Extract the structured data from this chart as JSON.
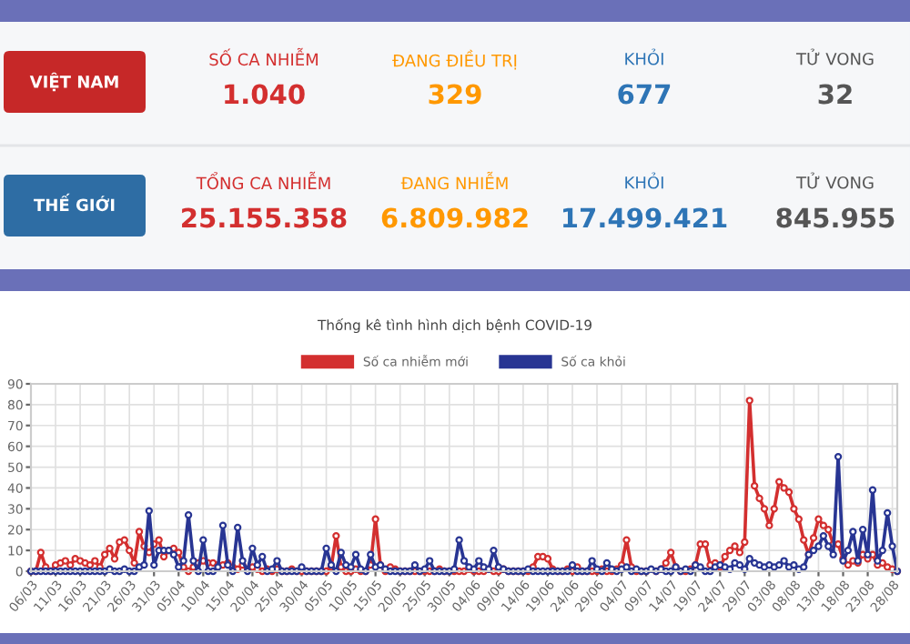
{
  "chart_data": [
    {
      "type": "other",
      "annotations": [
        "VIỆT NAM",
        "SỐ CA NHIỄM",
        "1.040",
        "ĐANG ĐIỀU TRỊ",
        "329",
        "KHỎI",
        "677",
        "TỬ VONG",
        "32",
        "THẾ GIỚI",
        "TỔNG CA NHIỄM",
        "25.155.358",
        "ĐANG NHIỄM",
        "6.809.982",
        "KHỎI",
        "17.499.421",
        "TỬ VONG",
        "845.955"
      ]
    },
    {
      "type": "line",
      "title": "Thống kê tình hình dịch bệnh COVID-19",
      "legend": "top",
      "grid": true,
      "marker": "circle",
      "line_style": "solid",
      "categories": [
        "06/03",
        null,
        null,
        null,
        null,
        "11/03",
        null,
        null,
        null,
        null,
        "16/03",
        null,
        null,
        null,
        null,
        "21/03",
        null,
        null,
        null,
        null,
        "26/03",
        null,
        null,
        null,
        null,
        "31/03",
        null,
        null,
        null,
        null,
        "05/04",
        null,
        null,
        null,
        null,
        "10/04",
        null,
        null,
        null,
        null,
        "15/04",
        null,
        null,
        null,
        null,
        "20/04",
        null,
        null,
        null,
        null,
        "25/04",
        null,
        null,
        null,
        null,
        "30/04",
        null,
        null,
        null,
        null,
        "05/05",
        null,
        null,
        null,
        null,
        "10/05",
        null,
        null,
        null,
        null,
        "15/05",
        null,
        null,
        null,
        null,
        "20/05",
        null,
        null,
        null,
        null,
        "25/05",
        null,
        null,
        null,
        null,
        "30/05",
        null,
        null,
        null,
        null,
        "04/06",
        null,
        null,
        null,
        null,
        "09/06",
        null,
        null,
        null,
        null,
        "14/06",
        null,
        null,
        null,
        null,
        "19/06",
        null,
        null,
        null,
        null,
        "24/06",
        null,
        null,
        null,
        null,
        "29/06",
        null,
        null,
        null,
        null,
        "04/07",
        null,
        null,
        null,
        null,
        "09/07",
        null,
        null,
        null,
        null,
        "14/07",
        null,
        null,
        null,
        null,
        "19/07",
        null,
        null,
        null,
        null,
        "24/07",
        null,
        null,
        null,
        null,
        "29/07",
        null,
        null,
        null,
        null,
        "03/08",
        null,
        null,
        null,
        null,
        "08/08",
        null,
        null,
        null,
        null,
        "13/08",
        null,
        null,
        null,
        null,
        "18/08",
        null,
        null,
        null,
        null,
        "23/08",
        null,
        null,
        null,
        null,
        "28/08",
        null
      ],
      "ylim": [
        0,
        90
      ],
      "yticks": [
        0,
        10,
        20,
        30,
        40,
        50,
        60,
        70,
        80,
        90
      ],
      "series": [
        {
          "name": "Số ca nhiễm mới",
          "color": "#d32f2f",
          "values": [
            0,
            0,
            9,
            2,
            0,
            3,
            4,
            5,
            3,
            6,
            5,
            4,
            3,
            5,
            2,
            8,
            11,
            6,
            14,
            15,
            10,
            4,
            19,
            12,
            9,
            13,
            15,
            7,
            10,
            11,
            9,
            2,
            0,
            2,
            4,
            5,
            4,
            4,
            3,
            3,
            4,
            2,
            1,
            3,
            1,
            2,
            1,
            0,
            1,
            0,
            1,
            0,
            0,
            1,
            0,
            0,
            0,
            0,
            0,
            0,
            0,
            2,
            17,
            2,
            0,
            0,
            1,
            0,
            0,
            3,
            25,
            3,
            0,
            2,
            1,
            0,
            0,
            0,
            0,
            0,
            0,
            0,
            0,
            1,
            0,
            0,
            0,
            0,
            0,
            1,
            0,
            0,
            0,
            1,
            0,
            0,
            1,
            0,
            0,
            0,
            0,
            0,
            2,
            7,
            7,
            6,
            1,
            0,
            0,
            1,
            0,
            2,
            0,
            0,
            0,
            0,
            1,
            0,
            0,
            1,
            3,
            15,
            2,
            0,
            0,
            0,
            null,
            0,
            1,
            4,
            9,
            2,
            0,
            0,
            1,
            3,
            13,
            13,
            3,
            4,
            2,
            7,
            10,
            12,
            9,
            14,
            82,
            41,
            35,
            30,
            22,
            30,
            43,
            40,
            38,
            30,
            25,
            15,
            8,
            16,
            25,
            22,
            20,
            13,
            13,
            6,
            3,
            5,
            4,
            8,
            6,
            8,
            3,
            4,
            2,
            1,
            0
          ]
        },
        {
          "name": "Số ca khỏi",
          "color": "#283593",
          "values": [
            0,
            0,
            0,
            0,
            0,
            0,
            0,
            0,
            0,
            0,
            0,
            0,
            0,
            0,
            0,
            0,
            1,
            0,
            0,
            1,
            0,
            0,
            2,
            3,
            29,
            3,
            10,
            10,
            10,
            8,
            2,
            5,
            27,
            5,
            0,
            15,
            0,
            0,
            2,
            22,
            3,
            0,
            21,
            5,
            0,
            11,
            3,
            7,
            0,
            1,
            5,
            0,
            0,
            0,
            0,
            2,
            0,
            0,
            0,
            0,
            11,
            3,
            0,
            9,
            3,
            2,
            8,
            1,
            0,
            8,
            2,
            3,
            1,
            0,
            0,
            0,
            0,
            0,
            3,
            0,
            1,
            5,
            0,
            0,
            0,
            0,
            1,
            15,
            5,
            2,
            1,
            5,
            2,
            1,
            10,
            2,
            1,
            0,
            0,
            0,
            0,
            1,
            0,
            0,
            0,
            0,
            0,
            0,
            0,
            0,
            3,
            0,
            0,
            0,
            5,
            1,
            0,
            4,
            1,
            0,
            1,
            2,
            0,
            1,
            0,
            0,
            1,
            0,
            1,
            0,
            0,
            2,
            0,
            1,
            0,
            3,
            2,
            0,
            0,
            2,
            3,
            2,
            1,
            4,
            3,
            1,
            6,
            4,
            3,
            2,
            3,
            2,
            3,
            5,
            2,
            3,
            1,
            2,
            8,
            10,
            12,
            17,
            12,
            8,
            55,
            5,
            10,
            19,
            5,
            20,
            8,
            39,
            5,
            10,
            28,
            12,
            0
          ]
        }
      ]
    }
  ]
}
